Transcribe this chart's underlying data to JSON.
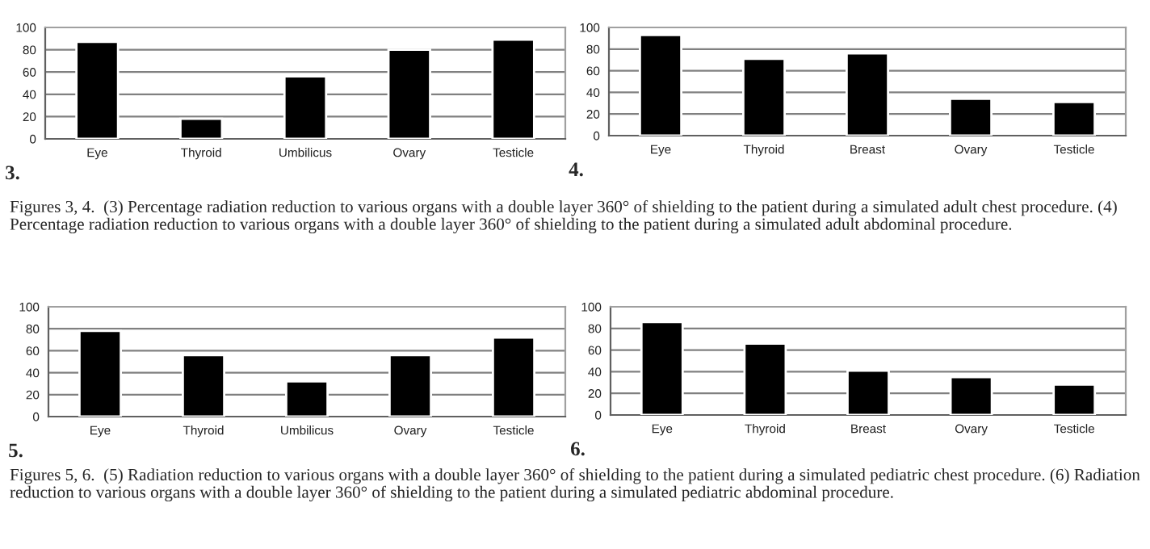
{
  "chart_data": [
    {
      "type": "bar",
      "categories": [
        "Eye",
        "Thyroid",
        "Umbilicus",
        "Ovary",
        "Testicle"
      ],
      "values": [
        87,
        18,
        56,
        80,
        89
      ],
      "color": "#000000",
      "ylim": [
        0,
        100
      ],
      "yticks": [
        0,
        20,
        40,
        60,
        80,
        100
      ],
      "grid": "y",
      "annotations": [
        "3.",
        "Figures 3, 4.  (3) Percentage radiation reduction to various organs with a double layer 360° of shielding to the patient during a simulated adult chest procedure. (4) Percentage radiation reduction to various organs with a double layer 360° of shielding to the patient during a simulated adult abdominal procedure."
      ]
    },
    {
      "type": "bar",
      "categories": [
        "Eye",
        "Thyroid",
        "Breast",
        "Ovary",
        "Testicle"
      ],
      "values": [
        93,
        71,
        76,
        34,
        31
      ],
      "color": "#000000",
      "ylim": [
        0,
        100
      ],
      "yticks": [
        0,
        20,
        40,
        60,
        80,
        100
      ],
      "grid": "y",
      "annotations": [
        "4."
      ]
    },
    {
      "type": "bar",
      "categories": [
        "Eye",
        "Thyroid",
        "Umbilicus",
        "Ovary",
        "Testicle"
      ],
      "values": [
        78,
        56,
        32,
        56,
        72
      ],
      "color": "#000000",
      "ylim": [
        0,
        100
      ],
      "yticks": [
        0,
        20,
        40,
        60,
        80,
        100
      ],
      "grid": "y",
      "annotations": [
        "5.",
        "Figures 5, 6.  (5) Radiation reduction to various organs with a double layer 360° of shielding to the patient during a simulated pediatric chest procedure. (6) Radiation reduction to various organs with a double layer 360° of shielding to the patient during a simulated pediatric abdominal procedure."
      ]
    },
    {
      "type": "bar",
      "categories": [
        "Eye",
        "Thyroid",
        "Breast",
        "Ovary",
        "Testicle"
      ],
      "values": [
        86,
        66,
        41,
        35,
        28
      ],
      "color": "#000000",
      "ylim": [
        0,
        100
      ],
      "yticks": [
        0,
        20,
        40,
        60,
        80,
        100
      ],
      "grid": "y",
      "annotations": [
        "6."
      ]
    }
  ]
}
